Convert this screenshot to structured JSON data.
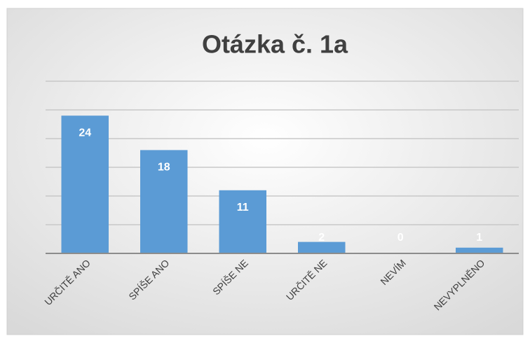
{
  "chart_data": {
    "type": "bar",
    "title": "Otázka č. 1a",
    "categories": [
      "URČITĚ ANO",
      "SPÍŠE ANO",
      "SPÍŠE NE",
      "URČITĚ NE",
      "NEVÍM",
      "NEVYPLNĚNO"
    ],
    "values": [
      24,
      18,
      11,
      2,
      0,
      1
    ],
    "color": "#5b9bd5",
    "ylim": [
      0,
      30
    ],
    "yticks": [
      0,
      5,
      10,
      15,
      20,
      25,
      30
    ],
    "grid": true
  }
}
